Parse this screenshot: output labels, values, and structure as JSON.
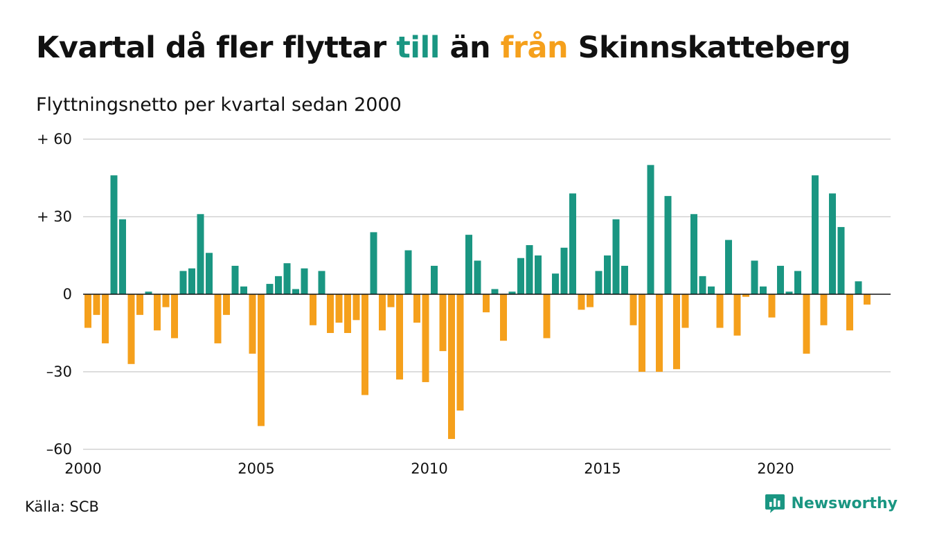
{
  "title": {
    "pre": "Kvartal då fler flyttar ",
    "till": "till",
    "mid": " än ",
    "fran": "från",
    "post": " Skinnskatteberg"
  },
  "subtitle": "Flyttningsnetto per kvartal sedan 2000",
  "source": "Källa: SCB",
  "brand": {
    "name": "Newsworthy",
    "icon": "bar-chart-logo-icon"
  },
  "colors": {
    "positive": "#1a9682",
    "negative": "#f5a01c",
    "grid": "#dddddd",
    "axis": "#111111"
  },
  "chart_data": {
    "type": "bar",
    "x_start_year": 2000,
    "periods_per_year": 4,
    "ylim": [
      -60,
      60
    ],
    "y_ticks": [
      {
        "value": 60,
        "label": "+ 60"
      },
      {
        "value": 30,
        "label": "+ 30"
      },
      {
        "value": 0,
        "label": "0"
      },
      {
        "value": -30,
        "label": "–30"
      },
      {
        "value": -60,
        "label": "–60"
      }
    ],
    "x_ticks": [
      {
        "year": 2000,
        "label": "2000"
      },
      {
        "year": 2005,
        "label": "2005"
      },
      {
        "year": 2010,
        "label": "2010"
      },
      {
        "year": 2015,
        "label": "2015"
      },
      {
        "year": 2020,
        "label": "2020"
      }
    ],
    "grid": true,
    "values": [
      -13,
      -8,
      -19,
      46,
      29,
      -27,
      -8,
      1,
      -14,
      -5,
      -17,
      9,
      10,
      31,
      16,
      -19,
      -8,
      11,
      3,
      -23,
      -51,
      4,
      7,
      12,
      2,
      10,
      -12,
      9,
      -15,
      -11,
      -15,
      -10,
      -39,
      24,
      -14,
      -5,
      -33,
      17,
      -11,
      -34,
      11,
      -22,
      -56,
      -45,
      23,
      13,
      -7,
      2,
      -18,
      1,
      14,
      19,
      15,
      -17,
      8,
      18,
      39,
      -6,
      -5,
      9,
      15,
      29,
      11,
      -12,
      -30,
      50,
      -30,
      38,
      -29,
      -13,
      31,
      7,
      3,
      -13,
      21,
      -16,
      -1,
      13,
      3,
      -9,
      11,
      1,
      9,
      -23,
      46,
      -12,
      39,
      26,
      -14,
      5,
      -4
    ]
  }
}
